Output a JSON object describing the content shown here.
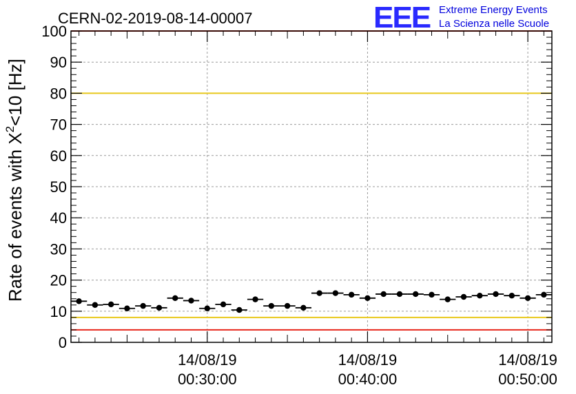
{
  "title": "CERN-02-2019-08-14-00007",
  "logo": {
    "mark": "EEE",
    "line1": "Extreme Energy Events",
    "line2": "La Scienza nelle Scuole",
    "color": "#2a2aff"
  },
  "chart_data": {
    "type": "scatter",
    "ylabel_main": "Rate of events with X",
    "ylabel_sup": "2",
    "ylabel_rest": "<10 [Hz]",
    "ylim": [
      0,
      100
    ],
    "yticks": [
      "0",
      "10",
      "20",
      "30",
      "40",
      "50",
      "60",
      "70",
      "80",
      "90",
      "100"
    ],
    "xlim_minutes": [
      21.5,
      51.5
    ],
    "xticks": [
      {
        "x": 30,
        "date": "14/08/19",
        "time": "00:30:00"
      },
      {
        "x": 40,
        "date": "14/08/19",
        "time": "00:40:00"
      },
      {
        "x": 50,
        "date": "14/08/19",
        "time": "00:50:00"
      }
    ],
    "grid": true,
    "reference_lines": [
      {
        "y": 100,
        "color": "#e8261b"
      },
      {
        "y": 80,
        "color": "#e8c81b"
      },
      {
        "y": 8,
        "color": "#e8c81b"
      },
      {
        "y": 4,
        "color": "#e8261b"
      }
    ],
    "series": [
      {
        "marker": "circle",
        "color": "#000000",
        "bin_width_minutes": 1,
        "x": [
          22,
          23,
          24,
          25,
          26,
          27,
          28,
          29,
          30,
          31,
          32,
          33,
          34,
          35,
          36,
          37,
          38,
          39,
          40,
          41,
          42,
          43,
          44,
          45,
          46,
          47,
          48,
          49,
          50,
          51
        ],
        "y": [
          13.2,
          12.0,
          12.2,
          10.9,
          11.7,
          11.1,
          14.2,
          13.4,
          10.9,
          12.2,
          10.4,
          13.8,
          11.7,
          11.7,
          11.1,
          15.8,
          15.8,
          15.3,
          14.2,
          15.5,
          15.5,
          15.5,
          15.3,
          13.8,
          14.6,
          15.0,
          15.5,
          15.0,
          14.2,
          15.3
        ]
      }
    ]
  }
}
